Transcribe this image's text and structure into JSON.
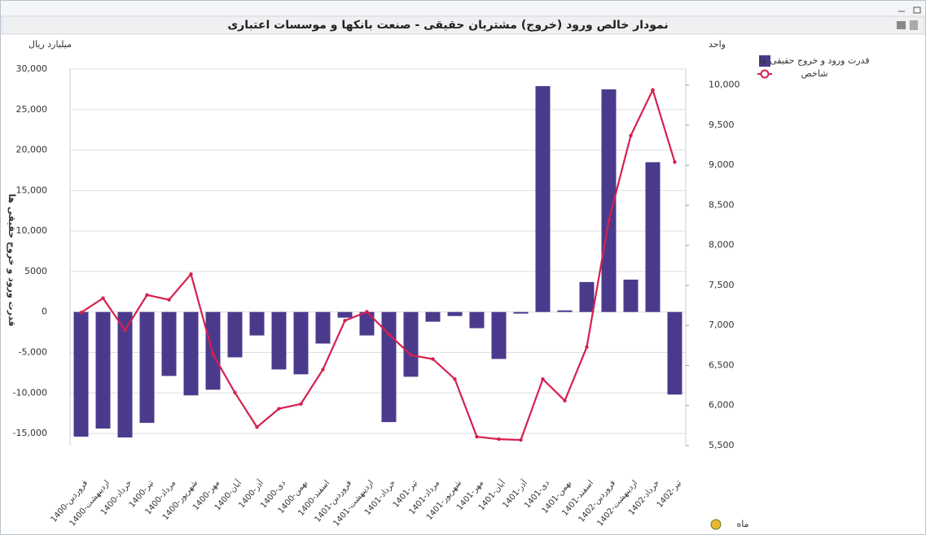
{
  "chart_data": {
    "type": "bar-line",
    "title": "نمودار خالص ورود (خروج) مشتریان حقیقی - صنعت بانکها و موسسات اعتباری",
    "y_unit": "میلیارد ریال",
    "y2_unit": "واحد",
    "ylabel": "قدرت ورود و خروج حقیقی ها",
    "xlabel": "ماه",
    "categories": [
      "1400-فروردین",
      "1400-اردیبهشت",
      "1400-خرداد",
      "1400-تیر",
      "1400-مرداد",
      "1400-شهریور",
      "1400-مهر",
      "1400-آبان",
      "1400-آذر",
      "1400-دی",
      "1400-بهمن",
      "1400-اسفند",
      "1401-فروردین",
      "1401-اردیبهشت",
      "1401-خرداد",
      "1401-تیر",
      "1401-مرداد",
      "1401-شهریور",
      "1401-مهر",
      "1401-آبان",
      "1401-آذر",
      "1401-دی",
      "1401-بهمن",
      "1401-اسفند",
      "1402-فروردین",
      "1402-اردیبهشت",
      "1402-خرداد",
      "1402-تیر"
    ],
    "series": [
      {
        "name": "قدرت ورود و خروج حقیقی ها",
        "type": "bar",
        "color": "#4b3a8c",
        "values": [
          -15400,
          -14400,
          -15500,
          -13700,
          -7900,
          -10300,
          -9600,
          -5600,
          -2900,
          -7100,
          -7700,
          -3900,
          -700,
          -2900,
          -13600,
          -8000,
          -1200,
          -500,
          -2000,
          -5800,
          -200,
          27900,
          200,
          3700,
          27500,
          4000,
          18500,
          -10200
        ]
      },
      {
        "name": "شاخص",
        "type": "line",
        "axis": "y2",
        "color": "#d6204e",
        "values": [
          7160,
          7340,
          6940,
          7380,
          7320,
          7640,
          6640,
          6160,
          5730,
          5960,
          6020,
          6450,
          7060,
          7170,
          6890,
          6630,
          6580,
          6330,
          5610,
          5580,
          5570,
          6330,
          6060,
          6730,
          8310,
          9370,
          9940,
          9040
        ]
      }
    ],
    "ylim": [
      -16500,
      30000
    ],
    "yticks": [
      {
        "value": -15000,
        "label": "-15,000"
      },
      {
        "value": -10000,
        "label": "-10,000"
      },
      {
        "value": -5000,
        "label": "-5,000"
      },
      0,
      {
        "value": 5000,
        "label": "5000"
      },
      {
        "value": 10000,
        "label": "10,000"
      },
      {
        "value": 15000,
        "label": "15,000"
      },
      {
        "value": 20000,
        "label": "20,000"
      },
      {
        "value": 25000,
        "label": "25,000"
      },
      {
        "value": 30000,
        "label": "30,000"
      }
    ],
    "y2lim": [
      5500,
      10200
    ],
    "y2ticks": [
      {
        "value": 5500,
        "label": "5,500"
      },
      {
        "value": 6000,
        "label": "6,000"
      },
      {
        "value": 6500,
        "label": "6,500"
      },
      {
        "value": 7000,
        "label": "7,000"
      },
      {
        "value": 7500,
        "label": "7,500"
      },
      {
        "value": 8000,
        "label": "8,000"
      },
      {
        "value": 8500,
        "label": "8,500"
      },
      {
        "value": 9000,
        "label": "9,000"
      },
      {
        "value": 9500,
        "label": "9,500"
      },
      {
        "value": 10000,
        "label": "10,000"
      }
    ],
    "grid": true
  }
}
